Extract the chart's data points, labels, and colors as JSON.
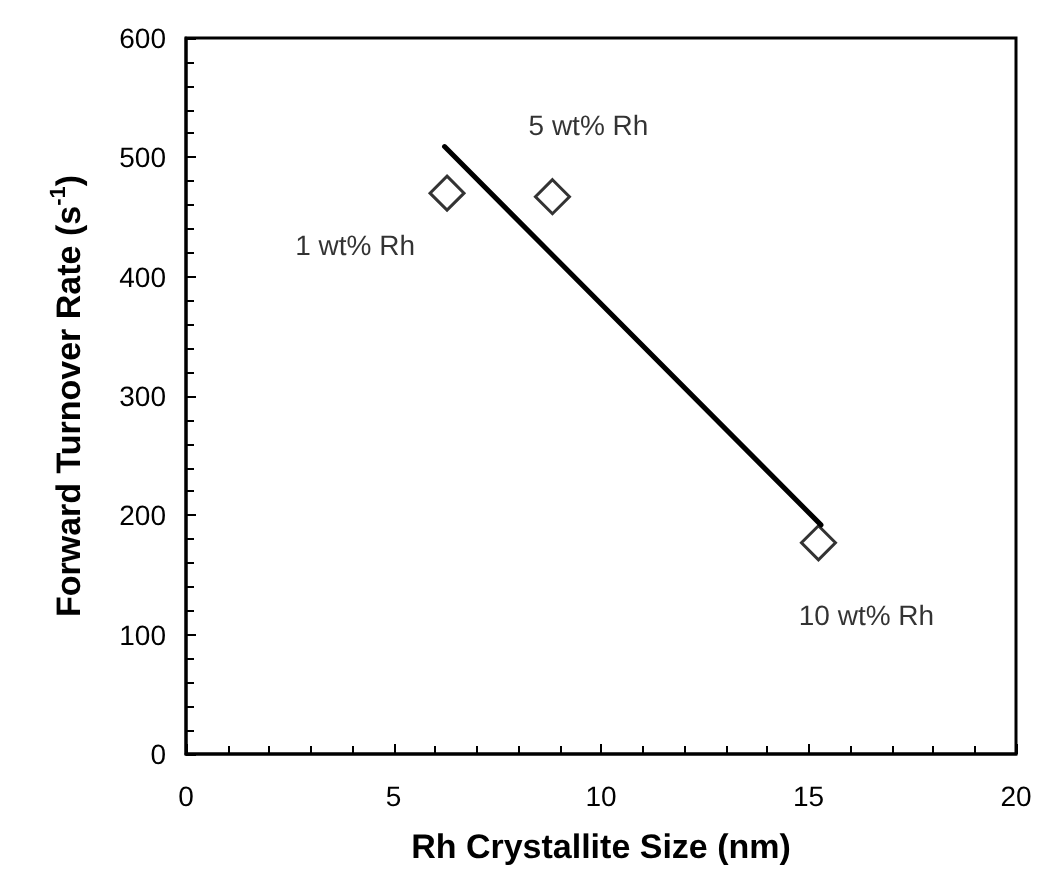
{
  "chart_data": {
    "type": "scatter",
    "xlabel": "Rh Crystallite Size (nm)",
    "ylabel": "Forward Turnover Rate (s$^{-1}$)",
    "xlim": [
      0,
      20
    ],
    "xticks": [
      0,
      5,
      10,
      15,
      20
    ],
    "ylim": [
      0,
      600
    ],
    "yticks": [
      0,
      100,
      200,
      300,
      400,
      500,
      600
    ],
    "grid": false,
    "series": [
      {
        "color": "#000000",
        "marker": "diamond",
        "x": [
          6.29,
          8.83,
          15.24
        ],
        "values": [
          470,
          467,
          177
        ]
      },
      {
        "type": "line",
        "color": "#000000",
        "marker": "none",
        "line_style": "solid",
        "x": [
          6.23,
          15.3
        ],
        "values": [
          509,
          192
        ]
      }
    ],
    "annotations": [
      {
        "text": "1 wt% Rh",
        "x": 6.29,
        "y": 470
      },
      {
        "text": "5 wt% Rh",
        "x": 8.83,
        "y": 467
      },
      {
        "text": "10 wt% Rh",
        "x": 15.24,
        "y": 177
      }
    ]
  }
}
